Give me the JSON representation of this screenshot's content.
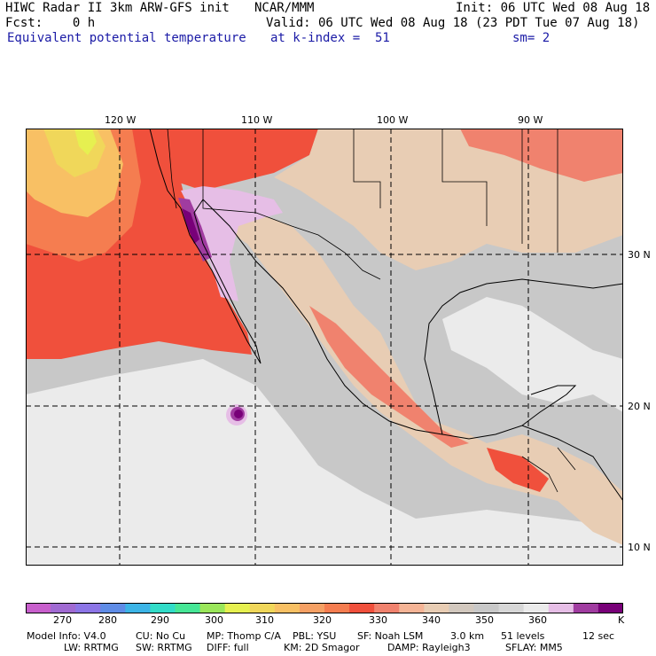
{
  "header": {
    "line1_left": "HIWC Radar II 3km ARW-GFS init",
    "line1_mid": "NCAR/MMM",
    "line1_right": "Init: 06 UTC Wed 08 Aug 18",
    "line2_left": "Fcst:    0 h",
    "line2_right": "Valid: 06 UTC Wed 08 Aug 18 (23 PDT Tue 07 Aug 18)",
    "line3_left": "Equivalent potential temperature",
    "line3_mid": "at k-index =  51",
    "line3_right": "sm= 2"
  },
  "map": {
    "lon_labels": [
      "120 W",
      "110 W",
      "100 W",
      "90 W"
    ],
    "lat_labels": [
      "30 N",
      "20 N",
      "10 N"
    ]
  },
  "colorbar": {
    "colors": [
      "#c85fcc",
      "#a06ad2",
      "#8c75e6",
      "#5f8ce6",
      "#3cb4e6",
      "#32dcc8",
      "#46e696",
      "#9ae65a",
      "#e6f050",
      "#f0d75a",
      "#f8c064",
      "#f5a064",
      "#f57d50",
      "#f0503c",
      "#f0826e",
      "#f5b496",
      "#e8cdb4",
      "#d2c8be",
      "#c8c8c8",
      "#d7d7d7",
      "#ebebeb",
      "#e6bee6",
      "#a03ca0",
      "#780078"
    ],
    "labels": [
      "270",
      "280",
      "290",
      "300",
      "310",
      "320",
      "330",
      "340",
      "350",
      "360",
      "K"
    ]
  },
  "footer": {
    "row1": [
      "Model Info: V4.0",
      "CU: No Cu",
      "MP: Thomp C/A",
      "PBL: YSU",
      "SF: Noah LSM",
      "3.0 km",
      "51 levels",
      "12 sec"
    ],
    "row2": [
      "LW: RRTMG",
      "SW: RRTMG",
      "DIFF: full",
      "KM: 2D Smagor",
      "DAMP: Rayleigh3",
      "SFLAY: MM5"
    ]
  }
}
